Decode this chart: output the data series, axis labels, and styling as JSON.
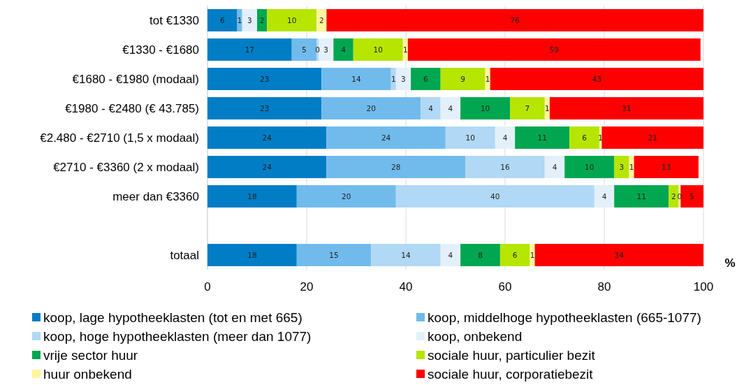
{
  "chart_data": {
    "type": "bar",
    "orientation": "horizontal",
    "stacked": true,
    "xlabel": "%",
    "categories": [
      "tot €1330",
      "€1330 - €1680",
      "€1680 - €1980 (modaal)",
      "€1980 - €2480 (€ 43.785)",
      "€2.480 - €2710 (1,5 x modaal)",
      "€2710 - €3360 (2 x modaal)",
      "meer dan €3360",
      null,
      "totaal"
    ],
    "series": [
      {
        "name": "koop, lage hypotheeklasten (tot en met 665)",
        "color": "#007dc5",
        "values": [
          6,
          17,
          23,
          23,
          24,
          24,
          18,
          null,
          18
        ],
        "value_labels": [
          "6",
          "17",
          "23",
          "23",
          "24",
          "24",
          "18",
          null,
          "18"
        ]
      },
      {
        "name": "koop, middelhoge hypotheeklasten (665-1077)",
        "color": "#70bbec",
        "values": [
          1,
          5,
          14,
          20,
          24,
          28,
          20,
          null,
          15
        ],
        "value_labels": [
          "1",
          "5",
          "14",
          "20",
          "24",
          "28",
          "20",
          null,
          "15"
        ]
      },
      {
        "name": "koop, hoge hypotheeklasten (meer dan 1077)",
        "color": "#b1d8f4",
        "values": [
          0,
          0.4,
          1,
          4,
          10,
          16,
          40,
          null,
          14
        ],
        "value_labels": [
          null,
          "0",
          "1",
          "4",
          "10",
          "16",
          "40",
          null,
          "14"
        ]
      },
      {
        "name": "koop, onbekend",
        "color": "#e3f0fa",
        "values": [
          3,
          3,
          3,
          4,
          4,
          4,
          4,
          null,
          4
        ],
        "value_labels": [
          "3",
          "3",
          "3",
          "4",
          "4",
          "4",
          "4",
          null,
          "4"
        ]
      },
      {
        "name": "vrije sector huur",
        "color": "#00a650",
        "values": [
          2,
          4,
          6,
          10,
          11,
          10,
          11,
          null,
          8
        ],
        "value_labels": [
          "2",
          "4",
          "6",
          "10",
          "11",
          "10",
          "11",
          null,
          "8"
        ]
      },
      {
        "name": "sociale huur, particulier bezit",
        "color": "#b6e500",
        "values": [
          10,
          10,
          9,
          7,
          6,
          3,
          2,
          null,
          6
        ],
        "value_labels": [
          "10",
          "10",
          "9",
          "7",
          "6",
          "3",
          "2",
          null,
          "6"
        ]
      },
      {
        "name": "huur onbekend",
        "color": "#fff59d",
        "values": [
          2,
          1,
          1,
          1,
          0.5,
          1,
          0.4,
          null,
          1
        ],
        "value_labels": [
          "2",
          "1",
          "1",
          "1",
          "1",
          "1",
          "0",
          null,
          "1"
        ]
      },
      {
        "name": "sociale huur, corporatiebezit",
        "color": "#ff0000",
        "values": [
          76,
          59,
          43,
          31,
          20.5,
          13,
          4.6,
          null,
          34
        ],
        "value_labels": [
          "76",
          "59",
          "43",
          "31",
          "21",
          "13",
          "5",
          null,
          "34"
        ]
      }
    ],
    "xlim": [
      0,
      100
    ],
    "xticks": [
      0,
      20,
      40,
      60,
      80,
      100
    ],
    "grid": "x",
    "legend": "bottom"
  }
}
